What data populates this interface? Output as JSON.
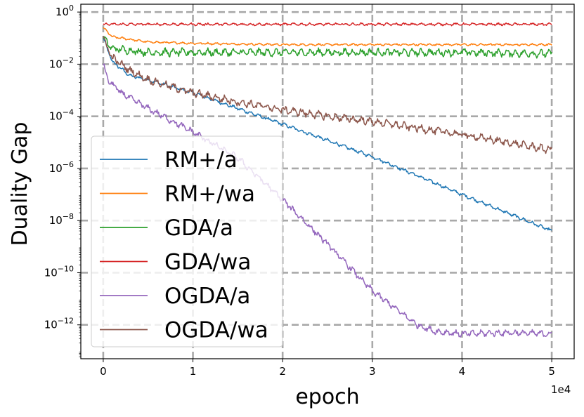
{
  "chart_data": {
    "type": "line",
    "xlabel": "epoch",
    "ylabel": "Duality Gap",
    "x_offset_label": "1e4",
    "xlim": [
      -2500,
      52500
    ],
    "ylim_log10": [
      -13.3,
      0.3
    ],
    "yscale": "log",
    "grid": true,
    "legend_position": "lower-left",
    "x_ticks": [
      0,
      10000,
      20000,
      30000,
      40000,
      50000
    ],
    "x_tick_labels": [
      "0",
      "1",
      "2",
      "3",
      "4",
      "5"
    ],
    "y_ticks_log10": [
      0,
      -2,
      -4,
      -6,
      -8,
      -10,
      -12
    ],
    "y_tick_labels": [
      {
        "base": "10",
        "exp": "0"
      },
      {
        "base": "10",
        "exp": "−2"
      },
      {
        "base": "10",
        "exp": "−4"
      },
      {
        "base": "10",
        "exp": "−6"
      },
      {
        "base": "10",
        "exp": "−8"
      },
      {
        "base": "10",
        "exp": "−10"
      },
      {
        "base": "10",
        "exp": "−12"
      }
    ],
    "series": [
      {
        "name": "RM+/a",
        "color": "#1f77b4",
        "x": [
          0,
          1000,
          3000,
          5000,
          10000,
          20000,
          30000,
          40000,
          50000
        ],
        "log10_y": [
          -1.0,
          -1.9,
          -2.45,
          -2.6,
          -3.1,
          -4.3,
          -5.55,
          -7.0,
          -8.4
        ],
        "noise_log10": 0.08
      },
      {
        "name": "RM+/wa",
        "color": "#ff7f0e",
        "x": [
          0,
          1000,
          5000,
          10000,
          20000,
          30000,
          40000,
          50000
        ],
        "log10_y": [
          -0.6,
          -0.95,
          -1.15,
          -1.2,
          -1.25,
          -1.25,
          -1.25,
          -1.25
        ],
        "noise_log10": 0.05
      },
      {
        "name": "GDA/a",
        "color": "#2ca02c",
        "x": [
          0,
          1000,
          5000,
          10000,
          20000,
          30000,
          40000,
          50000
        ],
        "log10_y": [
          -1.0,
          -1.4,
          -1.55,
          -1.55,
          -1.55,
          -1.55,
          -1.55,
          -1.6
        ],
        "noise_log10": 0.18
      },
      {
        "name": "GDA/wa",
        "color": "#d62728",
        "x": [
          0,
          10000,
          20000,
          30000,
          40000,
          50000
        ],
        "log10_y": [
          -0.47,
          -0.47,
          -0.47,
          -0.47,
          -0.47,
          -0.47
        ],
        "noise_log10": 0.06
      },
      {
        "name": "OGDA/a",
        "color": "#9467bd",
        "x": [
          0,
          500,
          2000,
          5000,
          10000,
          15000,
          20000,
          25000,
          30000,
          35000,
          37000,
          40000,
          45000,
          50000
        ],
        "log10_y": [
          -2.0,
          -2.6,
          -3.1,
          -3.7,
          -4.6,
          -5.6,
          -7.2,
          -8.9,
          -10.7,
          -12.0,
          -12.25,
          -12.35,
          -12.3,
          -12.35
        ],
        "noise_log10": 0.15
      },
      {
        "name": "OGDA/wa",
        "color": "#8c564b",
        "x": [
          0,
          1000,
          3000,
          5000,
          10000,
          15000,
          20000,
          25000,
          30000,
          35000,
          40000,
          45000,
          50000
        ],
        "log10_y": [
          -1.0,
          -1.75,
          -2.25,
          -2.6,
          -3.1,
          -3.45,
          -3.75,
          -4.0,
          -4.2,
          -4.45,
          -4.7,
          -5.0,
          -5.3
        ],
        "noise_log10": 0.18
      }
    ]
  }
}
